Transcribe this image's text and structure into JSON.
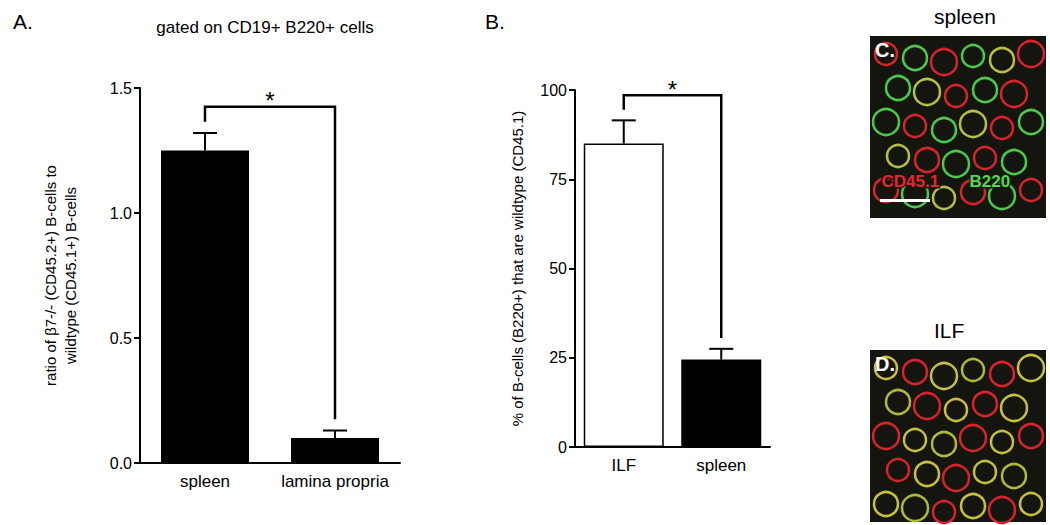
{
  "chart_data": [
    {
      "type": "bar",
      "panel": "A.",
      "title": "gated on CD19+ B220+ cells",
      "ylabel": "ratio of β7-/- (CD45.2+) B-cells to\nwildtype (CD45.1+) B-cells",
      "categories": [
        "spleen",
        "lamina propria"
      ],
      "values": [
        1.25,
        0.1
      ],
      "errors": [
        0.07,
        0.03
      ],
      "colors": [
        "#000000",
        "#000000"
      ],
      "ylim": [
        0,
        1.5
      ],
      "yticks": [
        {
          "value": 0,
          "label": "0.0"
        },
        {
          "value": 0.5,
          "label": "0.5"
        },
        {
          "value": 1,
          "label": "1.0"
        },
        {
          "value": 1.5,
          "label": "1.5"
        }
      ],
      "annotations": [
        {
          "text": "*",
          "between": [
            "spleen",
            "lamina propria"
          ]
        }
      ]
    },
    {
      "type": "bar",
      "panel": "B.",
      "ylabel": "% of B-cells (B220+) that are wildtype (CD45.1)",
      "categories": [
        "ILF",
        "spleen"
      ],
      "values": [
        85,
        24.5
      ],
      "errors": [
        6.5,
        3
      ],
      "colors": [
        "#ffffff",
        "#000000"
      ],
      "ylim": [
        0,
        100
      ],
      "yticks": [
        0,
        25,
        50,
        75,
        100
      ],
      "annotations": [
        {
          "text": "*",
          "between": [
            "ILF",
            "spleen"
          ]
        }
      ]
    }
  ],
  "images": [
    {
      "panel": "C.",
      "title": "spleen",
      "labels": [
        {
          "text": "CD45.1",
          "color": "#e8262a"
        },
        {
          "text": "B220",
          "color": "#52d94a"
        }
      ]
    },
    {
      "panel": "D.",
      "title": "ILF"
    }
  ]
}
